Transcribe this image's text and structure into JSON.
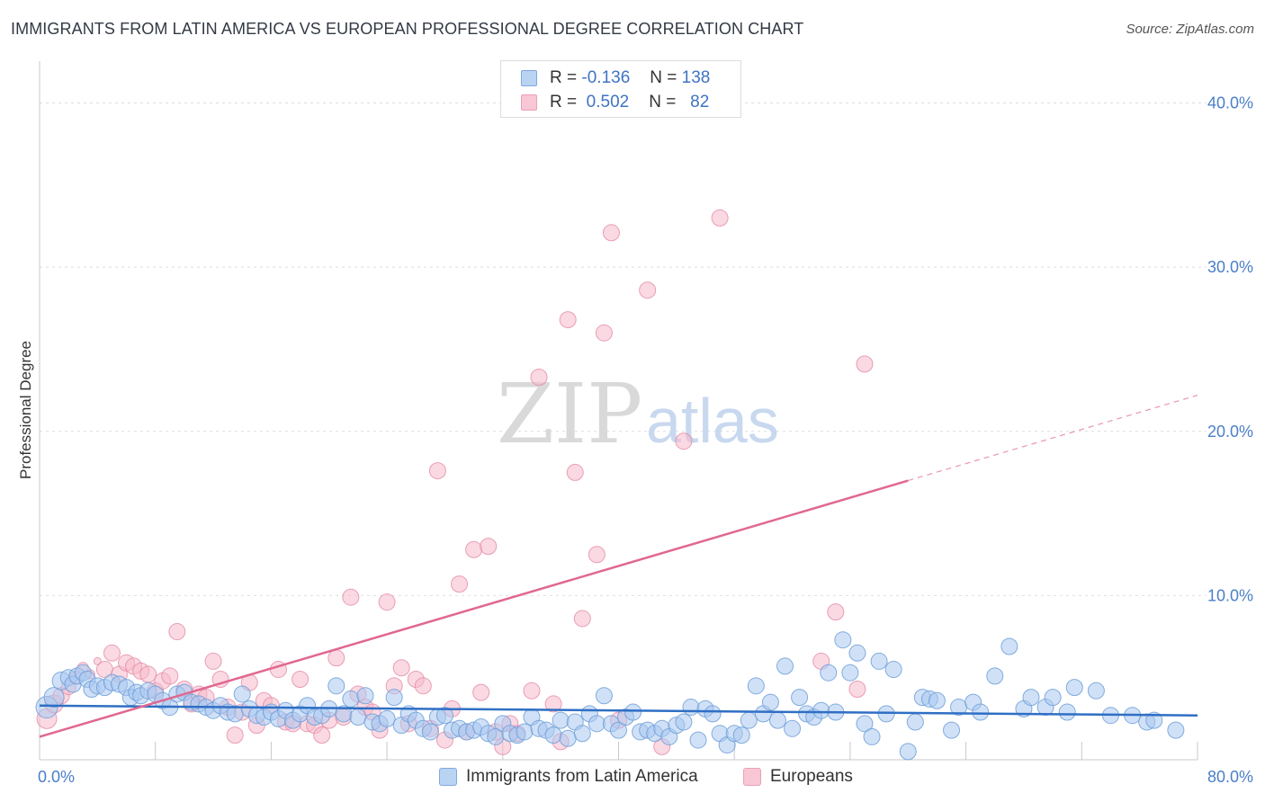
{
  "header": {
    "title": "IMMIGRANTS FROM LATIN AMERICA VS EUROPEAN PROFESSIONAL DEGREE CORRELATION CHART",
    "source": "Source: ZipAtlas.com"
  },
  "legend": {
    "rows": [
      {
        "r_label": "R = ",
        "r_value": "-0.136",
        "n_label": "N = ",
        "n_value": "138"
      },
      {
        "r_label": "R = ",
        "r_value": "0.502",
        "n_label": "N = ",
        "n_value": "82"
      }
    ]
  },
  "watermark": {
    "zip": "ZIP",
    "atlas": "atlas"
  },
  "colors": {
    "blue_fill": "#a9c8f0",
    "blue_stroke": "#6f9fd8",
    "blue_line": "#2f6fc4",
    "pink_fill": "#f5b9cb",
    "pink_stroke": "#e58aa6",
    "pink_line": "#e06890",
    "tick_text": "#4a7fc8",
    "grid": "#dedede"
  },
  "chart_data": {
    "type": "scatter",
    "title": "IMMIGRANTS FROM LATIN AMERICA VS EUROPEAN PROFESSIONAL DEGREE CORRELATION CHART",
    "xlabel": "",
    "ylabel": "Professional Degree",
    "xlim": [
      0,
      80
    ],
    "ylim": [
      0,
      42
    ],
    "x_tick_labels": [
      "0.0%",
      "80.0%"
    ],
    "y_ticks": [
      10,
      20,
      30,
      40
    ],
    "y_tick_labels": [
      "10.0%",
      "20.0%",
      "30.0%",
      "40.0%"
    ],
    "grid": true,
    "legend_position": "top-center",
    "series": [
      {
        "name": "Immigrants from Latin America",
        "color": "#a9c8f0",
        "r": -0.136,
        "n": 138,
        "trend": {
          "x0": 0,
          "y0": 3.3,
          "x1": 80,
          "y1": 2.7,
          "dashed_from": null
        },
        "points": [
          [
            0.5,
            3.2
          ],
          [
            1.0,
            3.8
          ],
          [
            1.5,
            4.8
          ],
          [
            2.0,
            5.0
          ],
          [
            2.3,
            4.6
          ],
          [
            2.6,
            5.1
          ],
          [
            3.0,
            5.3
          ],
          [
            3.3,
            4.9
          ],
          [
            3.6,
            4.3
          ],
          [
            4.0,
            4.5
          ],
          [
            4.5,
            4.4
          ],
          [
            5.0,
            4.7
          ],
          [
            5.5,
            4.6
          ],
          [
            6.0,
            4.4
          ],
          [
            6.3,
            3.8
          ],
          [
            6.7,
            4.1
          ],
          [
            7.0,
            3.9
          ],
          [
            7.5,
            4.2
          ],
          [
            8.0,
            4.0
          ],
          [
            8.5,
            3.6
          ],
          [
            9.0,
            3.2
          ],
          [
            9.5,
            4.0
          ],
          [
            10.0,
            4.1
          ],
          [
            10.5,
            3.5
          ],
          [
            11.0,
            3.4
          ],
          [
            11.5,
            3.2
          ],
          [
            12.0,
            3.0
          ],
          [
            12.5,
            3.3
          ],
          [
            13.0,
            2.9
          ],
          [
            13.5,
            2.8
          ],
          [
            14.0,
            4.0
          ],
          [
            14.5,
            3.1
          ],
          [
            15.0,
            2.7
          ],
          [
            15.5,
            2.6
          ],
          [
            16.0,
            2.9
          ],
          [
            16.5,
            2.5
          ],
          [
            17.0,
            3.0
          ],
          [
            17.5,
            2.4
          ],
          [
            18.0,
            2.8
          ],
          [
            18.5,
            3.3
          ],
          [
            19.0,
            2.6
          ],
          [
            19.5,
            2.7
          ],
          [
            20.0,
            3.1
          ],
          [
            20.5,
            4.5
          ],
          [
            21.0,
            2.8
          ],
          [
            21.5,
            3.7
          ],
          [
            22.0,
            2.6
          ],
          [
            22.5,
            3.9
          ],
          [
            23.0,
            2.3
          ],
          [
            23.5,
            2.2
          ],
          [
            24.0,
            2.5
          ],
          [
            24.5,
            3.8
          ],
          [
            25.0,
            2.1
          ],
          [
            25.5,
            2.8
          ],
          [
            26.0,
            2.4
          ],
          [
            26.5,
            1.9
          ],
          [
            27.0,
            1.7
          ],
          [
            27.5,
            2.6
          ],
          [
            28.0,
            2.7
          ],
          [
            28.5,
            1.8
          ],
          [
            29.0,
            1.9
          ],
          [
            29.5,
            1.7
          ],
          [
            30.0,
            1.8
          ],
          [
            30.5,
            2.0
          ],
          [
            31.0,
            1.6
          ],
          [
            31.5,
            1.4
          ],
          [
            32.0,
            2.2
          ],
          [
            32.5,
            1.6
          ],
          [
            33.0,
            1.5
          ],
          [
            33.5,
            1.7
          ],
          [
            34.0,
            2.6
          ],
          [
            34.5,
            1.9
          ],
          [
            35.0,
            1.8
          ],
          [
            35.5,
            1.5
          ],
          [
            36.0,
            2.4
          ],
          [
            36.5,
            1.3
          ],
          [
            37.0,
            2.3
          ],
          [
            37.5,
            1.6
          ],
          [
            38.0,
            2.8
          ],
          [
            38.5,
            2.2
          ],
          [
            39.0,
            3.9
          ],
          [
            39.5,
            2.2
          ],
          [
            40.0,
            1.8
          ],
          [
            40.5,
            2.6
          ],
          [
            41.0,
            2.9
          ],
          [
            41.5,
            1.7
          ],
          [
            42.0,
            1.8
          ],
          [
            42.5,
            1.6
          ],
          [
            43.0,
            1.9
          ],
          [
            43.5,
            1.4
          ],
          [
            44.0,
            2.1
          ],
          [
            44.5,
            2.3
          ],
          [
            45.0,
            3.2
          ],
          [
            45.5,
            1.2
          ],
          [
            46.0,
            3.1
          ],
          [
            46.5,
            2.8
          ],
          [
            47.0,
            1.6
          ],
          [
            47.5,
            0.9
          ],
          [
            48.0,
            1.6
          ],
          [
            48.5,
            1.5
          ],
          [
            49.0,
            2.4
          ],
          [
            49.5,
            4.5
          ],
          [
            50.0,
            2.8
          ],
          [
            50.5,
            3.5
          ],
          [
            51.0,
            2.4
          ],
          [
            51.5,
            5.7
          ],
          [
            52.0,
            1.9
          ],
          [
            52.5,
            3.8
          ],
          [
            53.0,
            2.8
          ],
          [
            53.5,
            2.6
          ],
          [
            54.0,
            3.0
          ],
          [
            54.5,
            5.3
          ],
          [
            55.0,
            2.9
          ],
          [
            55.5,
            7.3
          ],
          [
            56.0,
            5.3
          ],
          [
            56.5,
            6.5
          ],
          [
            57.0,
            2.2
          ],
          [
            57.5,
            1.4
          ],
          [
            58.0,
            6.0
          ],
          [
            58.5,
            2.8
          ],
          [
            59.0,
            5.5
          ],
          [
            60.0,
            0.5
          ],
          [
            60.5,
            2.3
          ],
          [
            61.0,
            3.8
          ],
          [
            61.5,
            3.7
          ],
          [
            62.0,
            3.6
          ],
          [
            63.0,
            1.8
          ],
          [
            63.5,
            3.2
          ],
          [
            64.5,
            3.5
          ],
          [
            65.0,
            2.9
          ],
          [
            66.0,
            5.1
          ],
          [
            67.0,
            6.9
          ],
          [
            68.0,
            3.1
          ],
          [
            68.5,
            3.8
          ],
          [
            69.5,
            3.2
          ],
          [
            70.0,
            3.8
          ],
          [
            71.0,
            2.9
          ],
          [
            71.5,
            4.4
          ],
          [
            73.0,
            4.2
          ],
          [
            74.0,
            2.7
          ],
          [
            75.5,
            2.7
          ],
          [
            76.5,
            2.3
          ],
          [
            77.0,
            2.4
          ],
          [
            78.5,
            1.8
          ]
        ]
      },
      {
        "name": "Europeans",
        "color": "#f5b9cb",
        "r": 0.502,
        "n": 82,
        "trend": {
          "x0": 0,
          "y0": 1.4,
          "x1": 80,
          "y1": 22.2,
          "dashed_from": 60
        },
        "points": [
          [
            0.5,
            2.5
          ],
          [
            1.0,
            3.4
          ],
          [
            1.5,
            3.9
          ],
          [
            2.0,
            4.4
          ],
          [
            2.5,
            5.0
          ],
          [
            3.0,
            5.6
          ],
          [
            3.5,
            5.2
          ],
          [
            4.0,
            6.0
          ],
          [
            4.5,
            5.5
          ],
          [
            5.0,
            6.5
          ],
          [
            5.5,
            5.2
          ],
          [
            6.0,
            5.9
          ],
          [
            6.5,
            5.7
          ],
          [
            7.0,
            5.4
          ],
          [
            7.5,
            5.2
          ],
          [
            8.0,
            4.2
          ],
          [
            8.5,
            4.8
          ],
          [
            9.0,
            5.1
          ],
          [
            9.5,
            7.8
          ],
          [
            10.0,
            4.3
          ],
          [
            10.5,
            3.4
          ],
          [
            11.0,
            4.0
          ],
          [
            11.5,
            3.8
          ],
          [
            12.0,
            6.0
          ],
          [
            12.5,
            4.9
          ],
          [
            13.0,
            3.2
          ],
          [
            13.5,
            1.5
          ],
          [
            14.0,
            2.9
          ],
          [
            14.5,
            4.7
          ],
          [
            15.0,
            2.1
          ],
          [
            15.5,
            3.6
          ],
          [
            16.0,
            3.3
          ],
          [
            16.5,
            5.5
          ],
          [
            17.0,
            2.3
          ],
          [
            17.5,
            2.2
          ],
          [
            18.0,
            4.9
          ],
          [
            18.5,
            2.2
          ],
          [
            19.0,
            2.1
          ],
          [
            19.5,
            1.5
          ],
          [
            20.0,
            2.4
          ],
          [
            20.5,
            6.2
          ],
          [
            21.0,
            2.6
          ],
          [
            21.5,
            9.9
          ],
          [
            22.0,
            4.0
          ],
          [
            22.5,
            3.2
          ],
          [
            23.0,
            2.9
          ],
          [
            23.5,
            1.8
          ],
          [
            24.0,
            9.6
          ],
          [
            24.5,
            4.5
          ],
          [
            25.0,
            5.6
          ],
          [
            25.5,
            2.2
          ],
          [
            26.0,
            4.9
          ],
          [
            26.5,
            4.5
          ],
          [
            27.0,
            1.9
          ],
          [
            27.5,
            17.6
          ],
          [
            28.0,
            1.2
          ],
          [
            28.5,
            3.1
          ],
          [
            29.0,
            10.7
          ],
          [
            29.5,
            1.7
          ],
          [
            30.0,
            12.8
          ],
          [
            30.5,
            4.1
          ],
          [
            31.0,
            13.0
          ],
          [
            31.5,
            1.7
          ],
          [
            32.0,
            0.8
          ],
          [
            32.5,
            2.2
          ],
          [
            33.0,
            1.6
          ],
          [
            34.0,
            4.2
          ],
          [
            34.5,
            23.3
          ],
          [
            35.5,
            3.4
          ],
          [
            36.0,
            1.1
          ],
          [
            36.5,
            26.8
          ],
          [
            37.0,
            17.5
          ],
          [
            37.5,
            8.6
          ],
          [
            38.5,
            12.5
          ],
          [
            39.0,
            26.0
          ],
          [
            39.5,
            32.1
          ],
          [
            40.0,
            2.4
          ],
          [
            42.0,
            28.6
          ],
          [
            43.0,
            0.8
          ],
          [
            44.5,
            19.4
          ],
          [
            47.0,
            33.0
          ],
          [
            54.0,
            6.0
          ],
          [
            55.0,
            9.0
          ],
          [
            56.5,
            4.3
          ],
          [
            57.0,
            24.1
          ]
        ]
      }
    ]
  },
  "bottom_legend": {
    "items": [
      {
        "label": "Immigrants from Latin America"
      },
      {
        "label": "Europeans"
      }
    ]
  }
}
